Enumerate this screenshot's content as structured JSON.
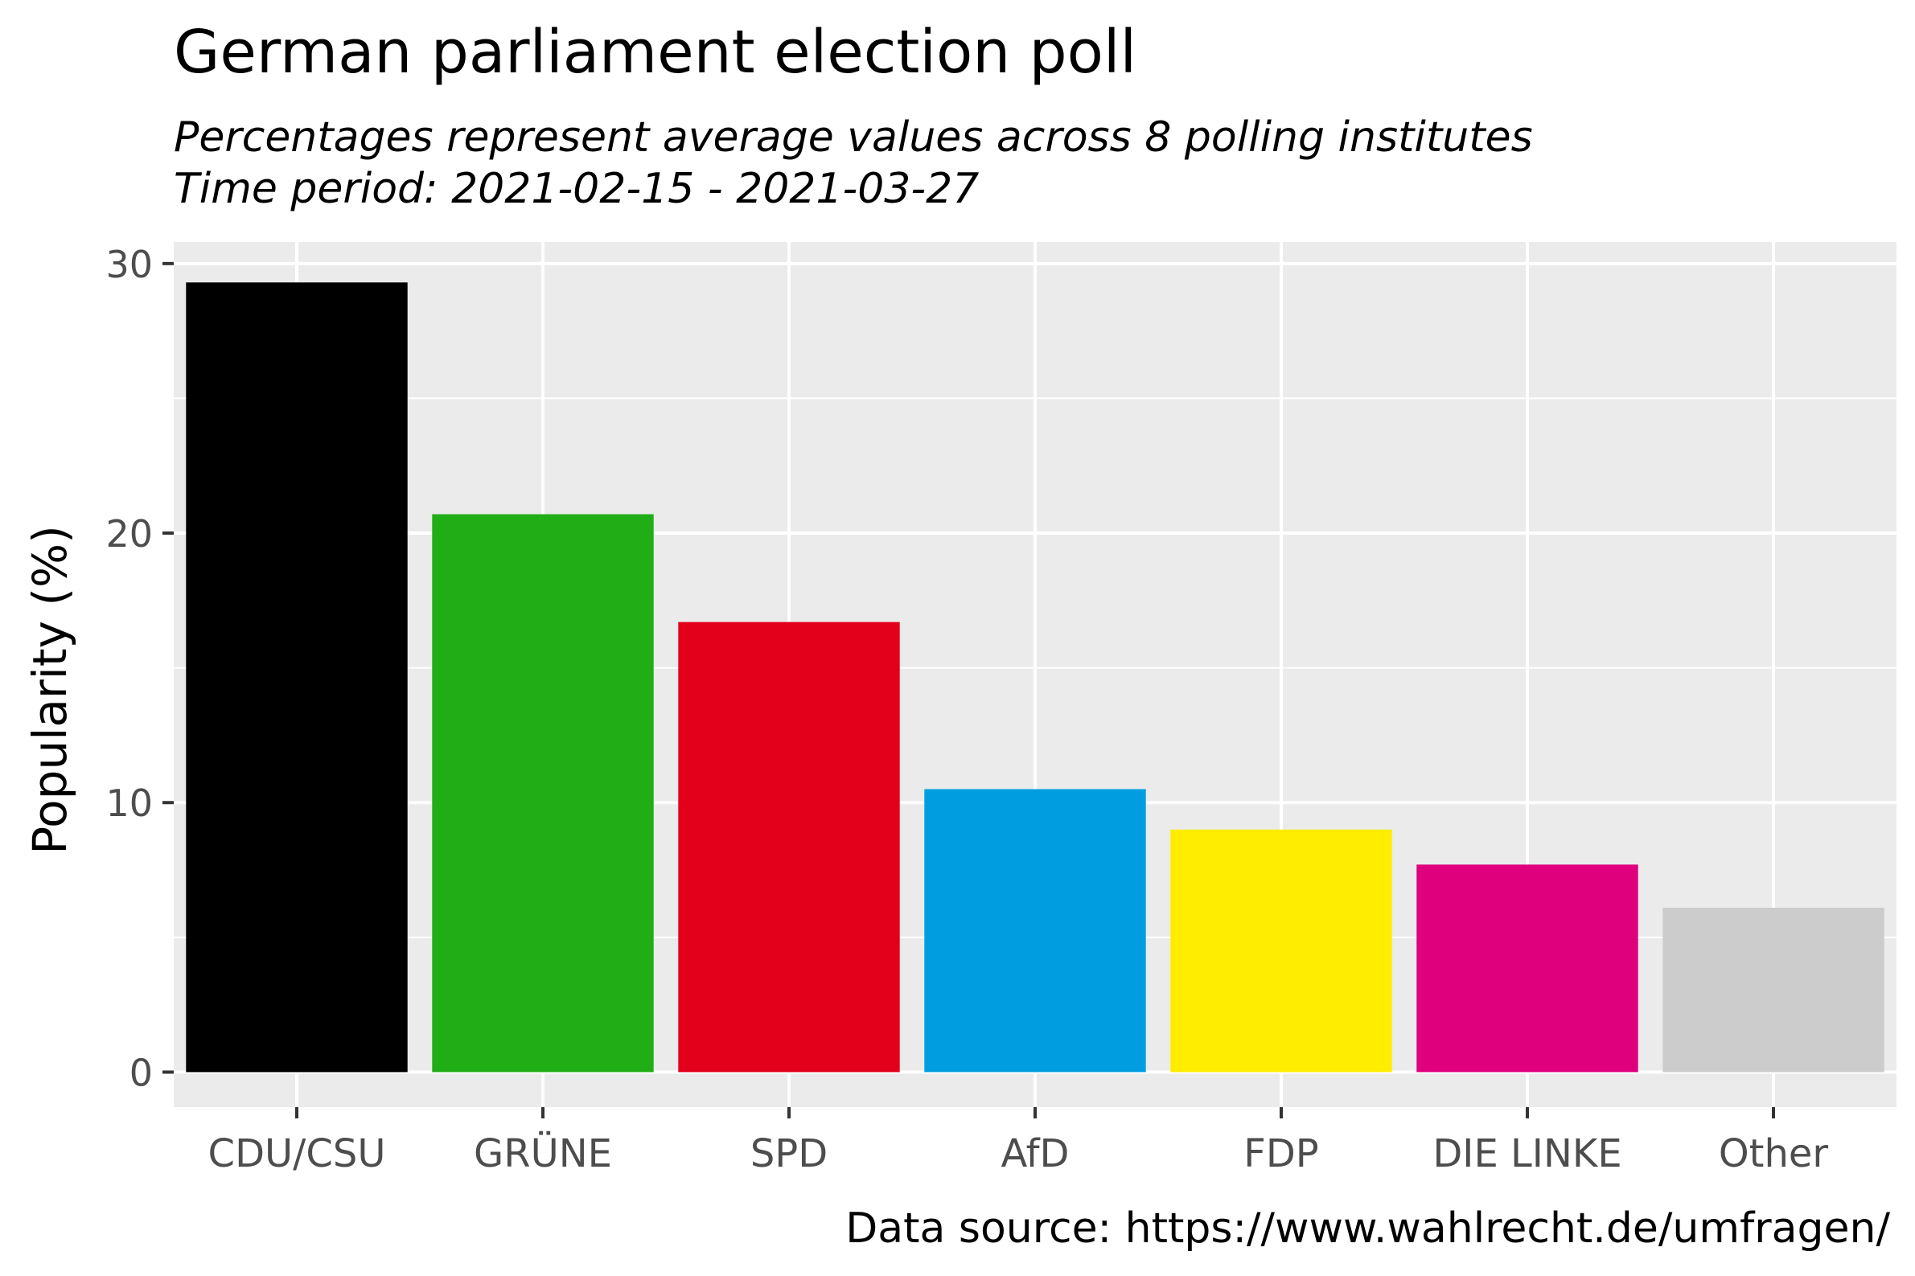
{
  "chart_data": {
    "type": "bar",
    "title": "German parliament election poll",
    "subtitle_lines": [
      "Percentages represent average values across 8 polling institutes",
      "Time period: 2021-02-15 - 2021-03-27"
    ],
    "caption": "Data source: https://www.wahlrecht.de/umfragen/",
    "xlabel": "",
    "ylabel": "Popularity (%)",
    "ylim": [
      -1.3,
      30.8
    ],
    "yticks": [
      0,
      10,
      20,
      30
    ],
    "grid": true,
    "legend": "none",
    "categories": [
      "CDU/CSU",
      "GRÜNE",
      "SPD",
      "AfD",
      "FDP",
      "DIE LINKE",
      "Other"
    ],
    "values": [
      29.3,
      20.7,
      16.7,
      10.5,
      9.0,
      7.7,
      6.1
    ],
    "colors": [
      "#000000",
      "#21ad16",
      "#e3001b",
      "#009ee0",
      "#ffed00",
      "#df007d",
      "#cccccc"
    ],
    "panel_background": "#ebebeb",
    "grid_color": "#ffffff"
  }
}
